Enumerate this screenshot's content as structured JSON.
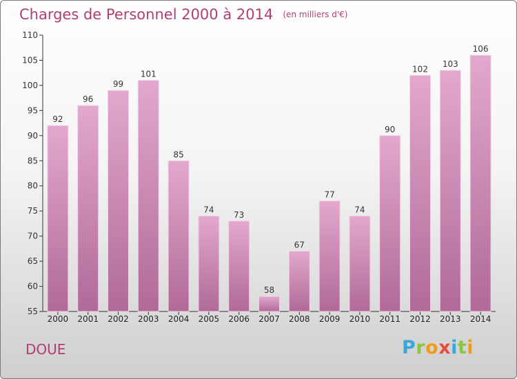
{
  "header": {
    "title": "Charges de Personnel 2000 à 2014",
    "subtitle": "(en milliers d'€)"
  },
  "footer": {
    "commune": "DOUE",
    "brand": "Proxiti"
  },
  "colors": {
    "title": "#b23d74",
    "bar_top": "#e3a8cd",
    "bar_bottom": "#b06a98",
    "logo_letters": [
      "#3aa7d9",
      "#8cc63f",
      "#f39c12",
      "#e74c3c",
      "#3aa7d9",
      "#8cc63f",
      "#f39c12"
    ]
  },
  "chart_data": {
    "type": "bar",
    "categories": [
      "2000",
      "2001",
      "2002",
      "2003",
      "2004",
      "2005",
      "2006",
      "2007",
      "2008",
      "2009",
      "2010",
      "2011",
      "2012",
      "2013",
      "2014"
    ],
    "values": [
      92,
      96,
      99,
      101,
      85,
      74,
      73,
      58,
      67,
      77,
      74,
      90,
      102,
      103,
      106
    ],
    "ylim": [
      55,
      110
    ],
    "yticks": [
      55,
      60,
      65,
      70,
      75,
      80,
      85,
      90,
      95,
      100,
      105,
      110
    ],
    "grid": false,
    "data_labels": true
  }
}
